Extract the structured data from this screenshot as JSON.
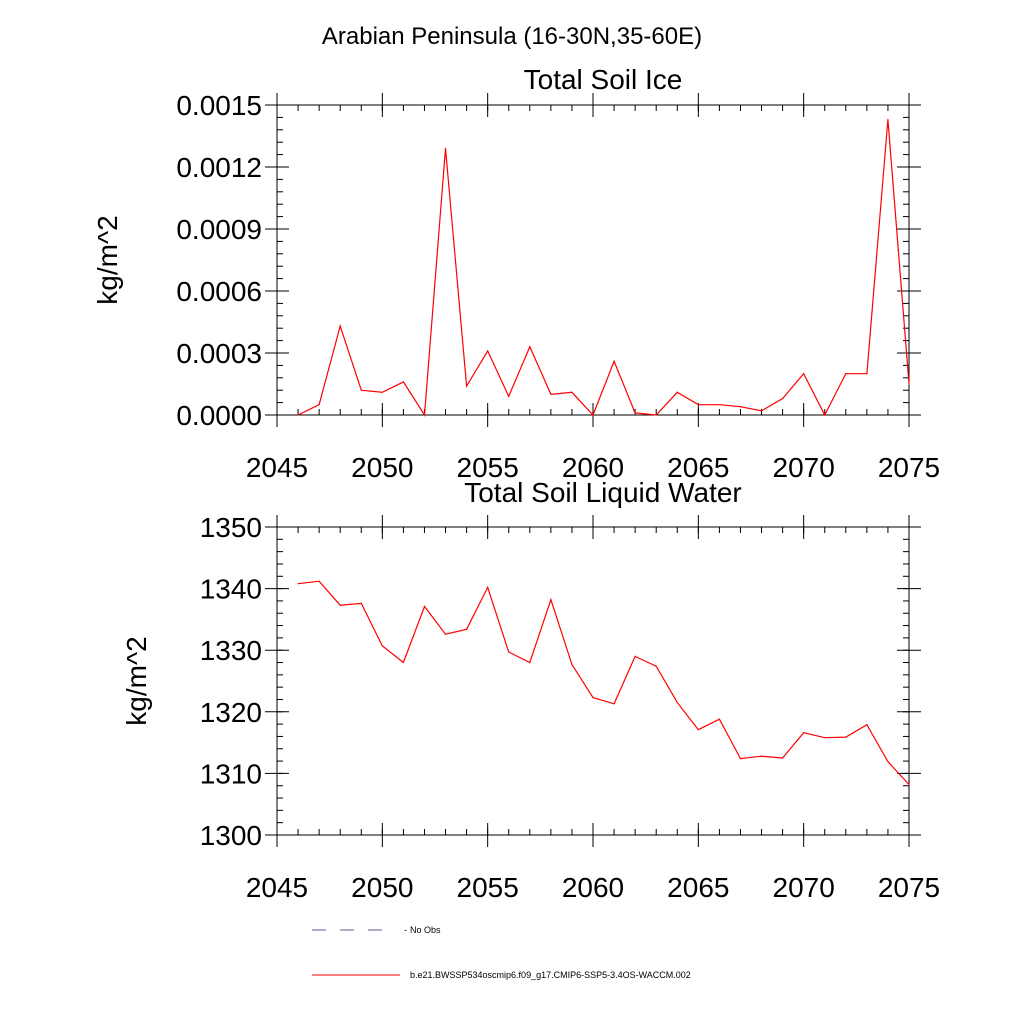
{
  "figure_title": "Arabian Peninsula (16-30N,35-60E)",
  "chart_data": [
    {
      "type": "line",
      "title": "Total Soil Ice",
      "xlabel": "",
      "ylabel": "kg/m^2",
      "xlim": [
        2045,
        2075
      ],
      "ylim": [
        0,
        0.0015
      ],
      "xticks": [
        2045,
        2050,
        2055,
        2060,
        2065,
        2070,
        2075
      ],
      "yticks": [
        0,
        0.0003,
        0.0006,
        0.0009,
        0.0012,
        0.0015
      ],
      "ytick_labels": [
        "0.0000",
        "0.0003",
        "0.0006",
        "0.0009",
        "0.0012",
        "0.0015"
      ],
      "series": [
        {
          "name": "b.e21.BWSSP534oscmip6.f09_g17.CMIP6-SSP5-3.4OS-WACCM.002",
          "color": "#ff0000",
          "x": [
            2046,
            2047,
            2048,
            2049,
            2050,
            2051,
            2052,
            2053,
            2054,
            2055,
            2056,
            2057,
            2058,
            2059,
            2060,
            2061,
            2062,
            2063,
            2064,
            2065,
            2066,
            2067,
            2068,
            2069,
            2070,
            2071,
            2072,
            2073,
            2074,
            2075
          ],
          "values": [
            0.0,
            5e-05,
            0.00043,
            0.00012,
            0.00011,
            0.00016,
            0.0,
            0.00129,
            0.00014,
            0.00031,
            9e-05,
            0.00033,
            0.0001,
            0.00011,
            0.0,
            0.00026,
            1e-05,
            0.0,
            0.00011,
            5e-05,
            5e-05,
            4e-05,
            2e-05,
            8e-05,
            0.0002,
            0.0,
            0.0002,
            0.0002,
            0.00143,
            0.00015
          ]
        }
      ]
    },
    {
      "type": "line",
      "title": "Total Soil Liquid Water",
      "xlabel": "",
      "ylabel": "kg/m^2",
      "xlim": [
        2045,
        2075
      ],
      "ylim": [
        1300,
        1350
      ],
      "xticks": [
        2045,
        2050,
        2055,
        2060,
        2065,
        2070,
        2075
      ],
      "yticks": [
        1300,
        1310,
        1320,
        1330,
        1340,
        1350
      ],
      "ytick_labels": [
        "1300",
        "1310",
        "1320",
        "1330",
        "1340",
        "1350"
      ],
      "series": [
        {
          "name": "b.e21.BWSSP534oscmip6.f09_g17.CMIP6-SSP5-3.4OS-WACCM.002",
          "color": "#ff0000",
          "x": [
            2046,
            2047,
            2048,
            2049,
            2050,
            2051,
            2052,
            2053,
            2054,
            2055,
            2056,
            2057,
            2058,
            2059,
            2060,
            2061,
            2062,
            2063,
            2064,
            2065,
            2066,
            2067,
            2068,
            2069,
            2070,
            2071,
            2072,
            2073,
            2074,
            2075
          ],
          "values": [
            1340.8,
            1341.2,
            1337.3,
            1337.6,
            1330.7,
            1328.0,
            1337.1,
            1332.6,
            1333.4,
            1340.2,
            1329.7,
            1328.0,
            1338.2,
            1327.7,
            1322.3,
            1321.3,
            1329.0,
            1327.4,
            1321.5,
            1317.1,
            1318.8,
            1312.4,
            1312.8,
            1312.5,
            1316.6,
            1315.8,
            1315.9,
            1317.9,
            1311.9,
            1308.2
          ]
        }
      ]
    }
  ],
  "legend": [
    {
      "label": "No Obs",
      "style": "dashed",
      "color": "#5a5a9a"
    },
    {
      "label": "b.e21.BWSSP534oscmip6.f09_g17.CMIP6-SSP5-3.4OS-WACCM.002",
      "style": "solid",
      "color": "#ff0000"
    }
  ]
}
